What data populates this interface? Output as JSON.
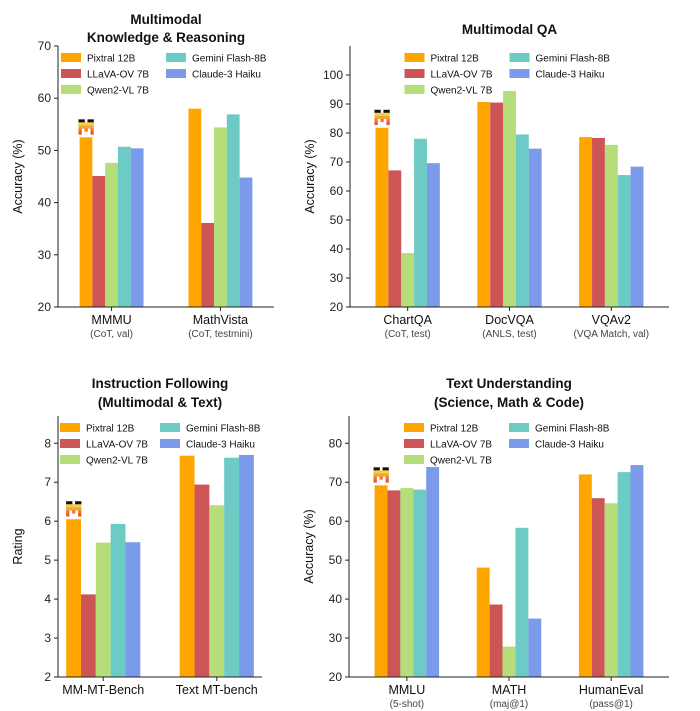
{
  "legend": {
    "items": [
      {
        "name": "Pixtral 12B",
        "color": "#FFA500"
      },
      {
        "name": "LLaVA-OV 7B",
        "color": "#CD5555"
      },
      {
        "name": "Qwen2-VL 7B",
        "color": "#B5DD79"
      },
      {
        "name": "Gemini Flash-8B",
        "color": "#6CCBC4"
      },
      {
        "name": "Claude-3 Haiku",
        "color": "#7C9AEA"
      }
    ]
  },
  "marker_icon": "mistral-logo-icon",
  "chart_data": [
    {
      "type": "bar",
      "title": [
        "Multimodal",
        "Knowledge & Reasoning"
      ],
      "ylabel": "Accuracy (%)",
      "ylim": [
        20,
        70
      ],
      "yticks": [
        20,
        30,
        40,
        50,
        60,
        70
      ],
      "categories": [
        "MMMU",
        "MathVista"
      ],
      "subcategories": [
        "(CoT, val)",
        "(CoT, testmini)"
      ],
      "legend_position": "top-center",
      "grid": false,
      "series": [
        {
          "name": "Pixtral 12B",
          "values": [
            52.5,
            58.0
          ]
        },
        {
          "name": "LLaVA-OV 7B",
          "values": [
            45.1,
            36.1
          ]
        },
        {
          "name": "Qwen2-VL 7B",
          "values": [
            47.6,
            54.4
          ]
        },
        {
          "name": "Gemini Flash-8B",
          "values": [
            50.7,
            56.9
          ]
        },
        {
          "name": "Claude-3 Haiku",
          "values": [
            50.4,
            44.8
          ]
        }
      ]
    },
    {
      "type": "bar",
      "title": [
        "Multimodal QA"
      ],
      "ylabel": "Accuracy (%)",
      "ylim": [
        20,
        110
      ],
      "yticks": [
        20,
        30,
        40,
        50,
        60,
        70,
        80,
        90,
        100
      ],
      "categories": [
        "ChartQA",
        "DocVQA",
        "VQAv2"
      ],
      "subcategories": [
        "(CoT, test)",
        "(ANLS, test)",
        "(VQA Match, val)"
      ],
      "legend_position": "top-center",
      "grid": false,
      "series": [
        {
          "name": "Pixtral 12B",
          "values": [
            81.8,
            90.7,
            78.6
          ]
        },
        {
          "name": "LLaVA-OV 7B",
          "values": [
            67.1,
            90.5,
            78.3
          ]
        },
        {
          "name": "Qwen2-VL 7B",
          "values": [
            38.6,
            94.5,
            75.9
          ]
        },
        {
          "name": "Gemini Flash-8B",
          "values": [
            78.0,
            79.5,
            65.5
          ]
        },
        {
          "name": "Claude-3 Haiku",
          "values": [
            69.6,
            74.6,
            68.4
          ]
        }
      ]
    },
    {
      "type": "bar",
      "title": [
        "Instruction Following",
        "(Multimodal & Text)"
      ],
      "ylabel": "Rating",
      "ylim": [
        2,
        8.7
      ],
      "yticks": [
        2,
        3,
        4,
        5,
        6,
        7,
        8
      ],
      "categories": [
        "MM-MT-Bench",
        "Text MT-bench"
      ],
      "subcategories": [
        "",
        ""
      ],
      "legend_position": "top-center",
      "grid": false,
      "series": [
        {
          "name": "Pixtral 12B",
          "values": [
            6.05,
            7.68
          ]
        },
        {
          "name": "LLaVA-OV 7B",
          "values": [
            4.12,
            6.94
          ]
        },
        {
          "name": "Qwen2-VL 7B",
          "values": [
            5.45,
            6.41
          ]
        },
        {
          "name": "Gemini Flash-8B",
          "values": [
            5.93,
            7.63
          ]
        },
        {
          "name": "Claude-3 Haiku",
          "values": [
            5.46,
            7.7
          ]
        }
      ]
    },
    {
      "type": "bar",
      "title": [
        "Text Understanding",
        "(Science, Math & Code)"
      ],
      "ylabel": "Accuracy (%)",
      "ylim": [
        20,
        87
      ],
      "yticks": [
        20,
        30,
        40,
        50,
        60,
        70,
        80
      ],
      "categories": [
        "MMLU",
        "MATH",
        "HumanEval"
      ],
      "subcategories": [
        "(5-shot)",
        "(maj@1)",
        "(pass@1)"
      ],
      "legend_position": "top-center",
      "grid": false,
      "series": [
        {
          "name": "Pixtral 12B",
          "values": [
            69.2,
            48.1,
            72.0
          ]
        },
        {
          "name": "LLaVA-OV 7B",
          "values": [
            67.9,
            38.6,
            65.9
          ]
        },
        {
          "name": "Qwen2-VL 7B",
          "values": [
            68.5,
            27.8,
            64.6
          ]
        },
        {
          "name": "Gemini Flash-8B",
          "values": [
            68.1,
            58.3,
            72.6
          ]
        },
        {
          "name": "Claude-3 Haiku",
          "values": [
            73.9,
            35.0,
            74.4
          ]
        }
      ]
    }
  ]
}
